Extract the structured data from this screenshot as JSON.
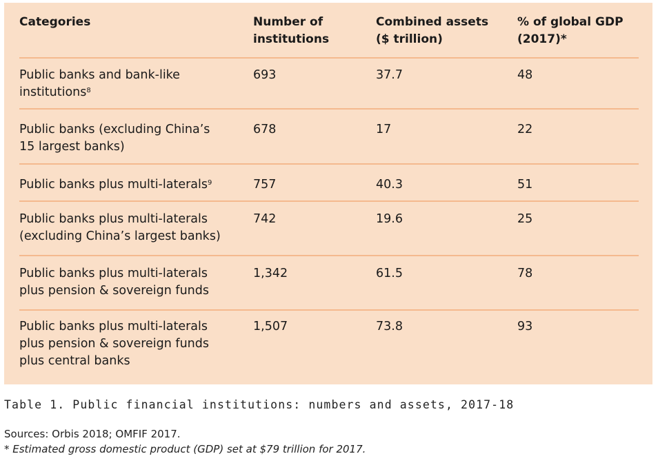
{
  "table": {
    "headers": {
      "categories": "Categories",
      "institutions_line1": "Number of",
      "institutions_line2": "institutions",
      "assets_line1": "Combined assets",
      "assets_line2": "($ trillion)",
      "gdp_line1": "% of global GDP",
      "gdp_line2": "(2017)*"
    },
    "rows": [
      {
        "category_line1": "Public banks and bank-like",
        "category_line2": "institutions",
        "footnote_ref": "8",
        "institutions": "693",
        "assets": "37.7",
        "gdp_pct": "48"
      },
      {
        "category_line1": "Public banks (excluding China’s",
        "category_line2": "15 largest banks)",
        "institutions": "678",
        "assets": "17",
        "gdp_pct": "22"
      },
      {
        "category_line1": "Public banks plus multi-laterals",
        "footnote_ref": "9",
        "institutions": "757",
        "assets": "40.3",
        "gdp_pct": "51"
      },
      {
        "category_line1": "Public banks plus multi-laterals",
        "category_line2": "(excluding China’s largest banks)",
        "institutions": "742",
        "assets": "19.6",
        "gdp_pct": "25"
      },
      {
        "category_line1": "Public banks plus multi-laterals",
        "category_line2": "plus pension & sovereign funds",
        "institutions": "1,342",
        "assets": "61.5",
        "gdp_pct": "78"
      },
      {
        "category_line1": "Public banks plus multi-laterals",
        "category_line2": "plus pension & sovereign funds",
        "category_line3": "plus central banks",
        "institutions": "1,507",
        "assets": "73.8",
        "gdp_pct": "93"
      }
    ]
  },
  "caption": "Table 1. Public financial institutions: numbers and assets, 2017-18",
  "sources": "Sources: Orbis 2018; OMFIF 2017.",
  "footnote": "* Estimated gross domestic product (GDP) set at $79 trillion for 2017.",
  "colors": {
    "table_background": "#fadfc8",
    "row_separator": "#f4b98e",
    "text": "#1a1a1a"
  }
}
